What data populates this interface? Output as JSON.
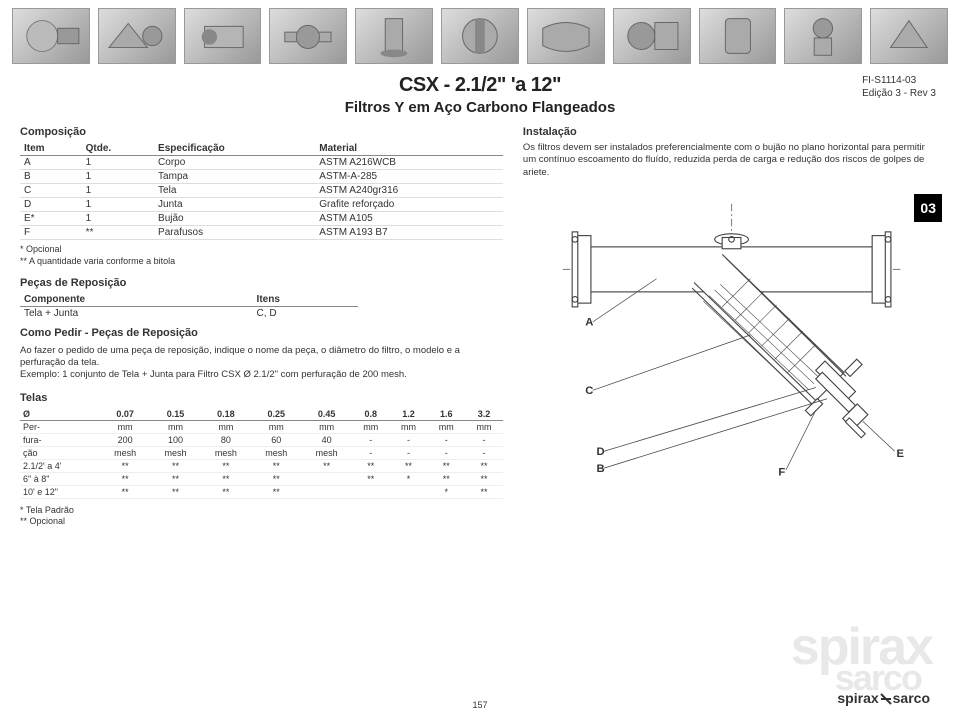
{
  "doc": {
    "id": "FI-S1114-03",
    "rev": "Edição 3 - Rev 3",
    "page": "157"
  },
  "header": {
    "title": "CSX - 2.1/2\" 'a 12\"",
    "subtitle": "Filtros Y em Aço Carbono Flangeados"
  },
  "composicao": {
    "heading": "Composição",
    "cols": [
      "Item",
      "Qtde.",
      "Especificação",
      "Material"
    ],
    "rows": [
      [
        "A",
        "1",
        "Corpo",
        "ASTM A216WCB"
      ],
      [
        "B",
        "1",
        "Tampa",
        "ASTM-A-285"
      ],
      [
        "C",
        "1",
        "Tela",
        "ASTM A240gr316"
      ],
      [
        "D",
        "1",
        "Junta",
        "Grafite reforçado"
      ],
      [
        "E*",
        "1",
        "Bujão",
        "ASTM A105"
      ],
      [
        "F",
        "**",
        "Parafusos",
        "ASTM A193 B7"
      ]
    ],
    "foot1": "* Opcional",
    "foot2": "** A quantidade varia conforme a bitola"
  },
  "pecas": {
    "heading": "Peças de Reposição",
    "cols": [
      "Componente",
      "Itens"
    ],
    "row": [
      "Tela + Junta",
      "C, D"
    ]
  },
  "como": {
    "heading": "Como Pedir - Peças de Reposição",
    "body1": "Ao fazer o pedido de uma peça de reposição, indique o nome da peça, o diâmetro do filtro, o modelo e a perfuração da tela.",
    "body2": "Exemplo: 1 conjunto de Tela + Junta para Filtro CSX Ø 2.1/2\" com perfuração de 200 mesh."
  },
  "telas": {
    "heading": "Telas",
    "header": [
      "Ø",
      "0.07",
      "0.15",
      "0.18",
      "0.25",
      "0.45",
      "0.8",
      "1.2",
      "1.6",
      "3.2"
    ],
    "rows": [
      [
        "Per-",
        "mm",
        "mm",
        "mm",
        "mm",
        "mm",
        "mm",
        "mm",
        "mm",
        "mm"
      ],
      [
        "fura-",
        "200",
        "100",
        "80",
        "60",
        "40",
        "-",
        "-",
        "-",
        "-"
      ],
      [
        "ção",
        "mesh",
        "mesh",
        "mesh",
        "mesh",
        "mesh",
        "-",
        "-",
        "-",
        "-"
      ],
      [
        "2.1/2' a 4'",
        "**",
        "**",
        "**",
        "**",
        "**",
        "**",
        "**",
        "**",
        "**"
      ],
      [
        "6\" à 8\"",
        "**",
        "**",
        "**",
        "**",
        "",
        "**",
        "*",
        "**",
        "**"
      ],
      [
        "10' e 12\"",
        "**",
        "**",
        "**",
        "**",
        "",
        "",
        "",
        "*",
        "**"
      ]
    ],
    "foot1": "* Tela Padrão",
    "foot2": "** Opcional"
  },
  "instalacao": {
    "heading": "Instalação",
    "body": "Os filtros devem ser instalados preferencialmente com o bujão no plano horizontal para permitir um contínuo escoamento do fluído, reduzida perda de carga e redução dos riscos de golpes de ariete."
  },
  "badge": "03",
  "labels": {
    "A": "A",
    "B": "B",
    "C": "C",
    "D": "D",
    "E": "E",
    "F": "F"
  },
  "brand": {
    "main": "spirax",
    "sub": "sarco"
  },
  "colors": {
    "line": "#444444",
    "dash": "#888888",
    "fill": "#ffffff",
    "ghost": "#e8e8e8"
  }
}
